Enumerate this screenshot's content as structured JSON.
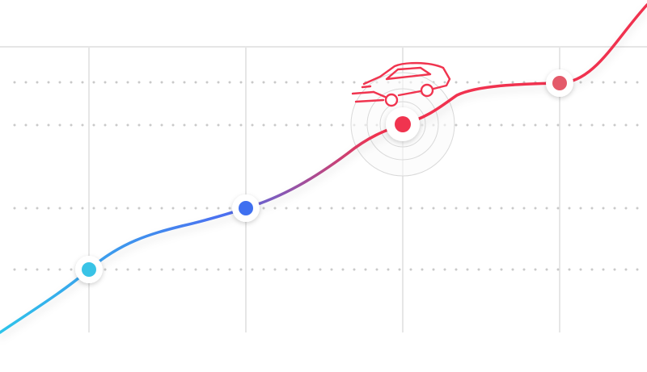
{
  "colors": {
    "background": "#ffffff",
    "grid_line": "#e6e6e6",
    "grid_dots": "#c9c9c9",
    "gradient_start": "#2ec4ea",
    "gradient_mid": "#4b6ef0",
    "gradient_end": "#f0334f",
    "point_1": "#39c3e6",
    "point_2": "#3f70f0",
    "point_3": "#f0344f",
    "point_4": "#e45a6a",
    "car_icon": "#f0344f",
    "pulse_ring": "#d9d9d9"
  },
  "icons": {
    "vehicle": "car-icon",
    "active_marker": "pulse-rings-icon"
  },
  "points": [
    {
      "name": "milestone-1",
      "status": "passed"
    },
    {
      "name": "milestone-2",
      "status": "passed"
    },
    {
      "name": "milestone-3",
      "status": "current"
    },
    {
      "name": "milestone-4",
      "status": "upcoming"
    }
  ]
}
